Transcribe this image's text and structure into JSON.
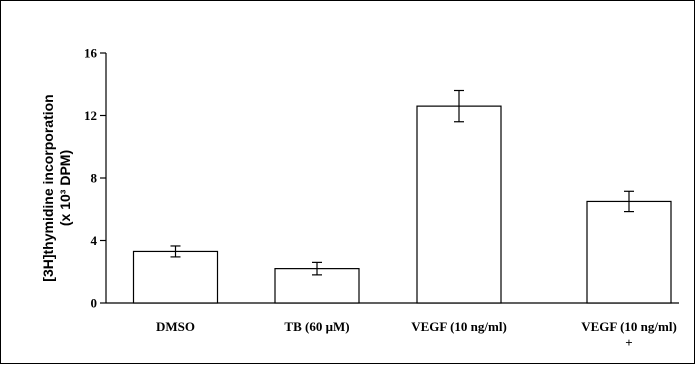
{
  "chart_data": {
    "type": "bar",
    "title": "",
    "xlabel": "",
    "ylabel": [
      "[3H]thymidine incorporation",
      "(x 10³ DPM)"
    ],
    "categories": [
      [
        "DMSO"
      ],
      [
        "TB (60 μM)"
      ],
      [
        "VEGF (10 ng/ml)"
      ],
      [
        "VEGF (10 ng/ml)",
        "+"
      ]
    ],
    "values": [
      3.3,
      2.2,
      12.6,
      6.5
    ],
    "errors": [
      0.35,
      0.4,
      1.0,
      0.65
    ],
    "ylim": [
      0,
      16
    ],
    "yticks": [
      0,
      4,
      8,
      12,
      16
    ],
    "grid": false,
    "legend": "none",
    "colors": {
      "bar_fill": "#ffffff",
      "bar_stroke": "#000000",
      "axis": "#000000",
      "frame": "#000000"
    }
  }
}
